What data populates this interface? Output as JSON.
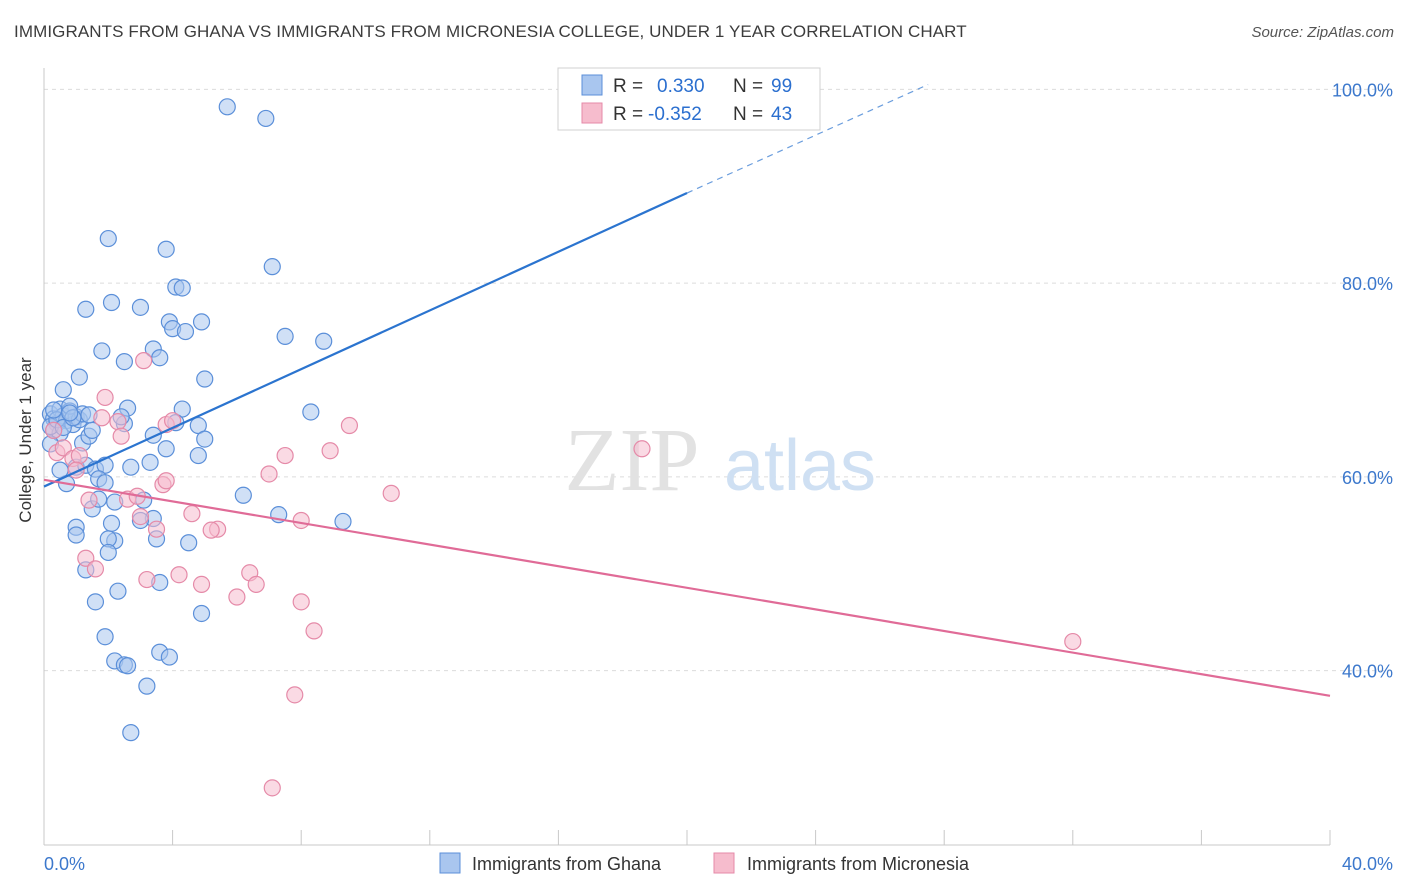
{
  "title": "IMMIGRANTS FROM GHANA VS IMMIGRANTS FROM MICRONESIA COLLEGE, UNDER 1 YEAR CORRELATION CHART",
  "source": "Source: ZipAtlas.com",
  "watermark": {
    "zip": "ZIP",
    "atlas": "atlas"
  },
  "legend_box": {
    "rows": [
      {
        "r_label": "R =",
        "r_value": "0.330",
        "n_label": "N =",
        "n_value": "99"
      },
      {
        "r_label": "R =",
        "r_value": "-0.352",
        "n_label": "N =",
        "n_value": "43"
      }
    ]
  },
  "chart_data": {
    "type": "scatter",
    "xlabel": "",
    "ylabel": "College, Under 1 year",
    "xlim": [
      0,
      40
    ],
    "ylim": [
      22,
      102
    ],
    "x_tick_labels": [
      "0.0%",
      "40.0%"
    ],
    "y_ticks": [
      40,
      60,
      80,
      100
    ],
    "y_tick_labels": [
      "40.0%",
      "60.0%",
      "80.0%",
      "100.0%"
    ],
    "grid": true,
    "legend": "bottom",
    "series": [
      {
        "name": "Immigrants from Ghana",
        "color": "#5b8fd9",
        "fill": "#a9c6ef",
        "line_color": "#2b74cf",
        "r": 0.33,
        "n": 99,
        "trend": {
          "x": [
            0,
            20
          ],
          "y": [
            59,
            89.3
          ],
          "dashed_to": [
            27.5,
            100.5
          ]
        },
        "points": [
          [
            0.2,
            66.5
          ],
          [
            0.3,
            66
          ],
          [
            0.4,
            65.5
          ],
          [
            0.5,
            67
          ],
          [
            0.6,
            66.3
          ],
          [
            0.7,
            65.8
          ],
          [
            0.8,
            66.8
          ],
          [
            0.9,
            65.4
          ],
          [
            1.0,
            66.2
          ],
          [
            1.1,
            65.9
          ],
          [
            0.3,
            64.8
          ],
          [
            0.5,
            64.5
          ],
          [
            0.2,
            65.2
          ],
          [
            0.8,
            67.3
          ],
          [
            1.2,
            66.5
          ],
          [
            0.6,
            69
          ],
          [
            1.1,
            70.3
          ],
          [
            1.2,
            63.5
          ],
          [
            1.4,
            64.2
          ],
          [
            1.5,
            64.8
          ],
          [
            1.0,
            61
          ],
          [
            1.3,
            61.2
          ],
          [
            1.6,
            60.8
          ],
          [
            1.9,
            61.2
          ],
          [
            0.7,
            59.3
          ],
          [
            1.7,
            59.8
          ],
          [
            1.9,
            59.4
          ],
          [
            1.5,
            56.7
          ],
          [
            1.7,
            57.7
          ],
          [
            2.2,
            57.4
          ],
          [
            1.0,
            54.8
          ],
          [
            1.0,
            54
          ],
          [
            2.1,
            55.2
          ],
          [
            2.2,
            53.4
          ],
          [
            2.0,
            53.6
          ],
          [
            2.0,
            52.2
          ],
          [
            1.3,
            50.4
          ],
          [
            2.3,
            48.2
          ],
          [
            1.6,
            47.1
          ],
          [
            1.9,
            43.5
          ],
          [
            2.2,
            41
          ],
          [
            2.5,
            40.6
          ],
          [
            2.6,
            40.5
          ],
          [
            3.2,
            38.4
          ],
          [
            2.7,
            33.6
          ],
          [
            2.0,
            84.6
          ],
          [
            3.8,
            83.5
          ],
          [
            1.3,
            77.3
          ],
          [
            2.1,
            78
          ],
          [
            3.0,
            77.5
          ],
          [
            4.1,
            79.6
          ],
          [
            4.3,
            79.5
          ],
          [
            3.9,
            76
          ],
          [
            4.0,
            75.3
          ],
          [
            4.4,
            75
          ],
          [
            4.9,
            76
          ],
          [
            1.8,
            73
          ],
          [
            2.5,
            71.9
          ],
          [
            3.4,
            73.2
          ],
          [
            3.6,
            72.3
          ],
          [
            5.0,
            70.1
          ],
          [
            2.6,
            67.1
          ],
          [
            4.3,
            67
          ],
          [
            2.5,
            65.5
          ],
          [
            3.4,
            64.3
          ],
          [
            3.8,
            62.9
          ],
          [
            4.1,
            65.6
          ],
          [
            4.8,
            65.3
          ],
          [
            4.8,
            62.2
          ],
          [
            5.0,
            63.9
          ],
          [
            3.3,
            61.5
          ],
          [
            2.7,
            61
          ],
          [
            3.1,
            57.6
          ],
          [
            3.4,
            55.7
          ],
          [
            3.0,
            55.5
          ],
          [
            3.5,
            53.6
          ],
          [
            4.5,
            53.2
          ],
          [
            3.6,
            49.1
          ],
          [
            4.9,
            45.9
          ],
          [
            3.6,
            41.9
          ],
          [
            3.9,
            41.4
          ],
          [
            5.7,
            98.2
          ],
          [
            6.9,
            97
          ],
          [
            7.1,
            81.7
          ],
          [
            7.5,
            74.5
          ],
          [
            8.7,
            74
          ],
          [
            8.3,
            66.7
          ],
          [
            6.2,
            58.1
          ],
          [
            7.3,
            56.1
          ],
          [
            9.3,
            55.4
          ],
          [
            0.4,
            65.9
          ],
          [
            0.6,
            65.1
          ],
          [
            0.9,
            66.1
          ],
          [
            0.2,
            63.4
          ],
          [
            0.5,
            60.7
          ],
          [
            0.8,
            66.6
          ],
          [
            1.4,
            66.4
          ],
          [
            2.4,
            66.2
          ],
          [
            0.3,
            66.9
          ]
        ]
      },
      {
        "name": "Immigrants from Micronesia",
        "color": "#e58aa8",
        "fill": "#f6bccd",
        "line_color": "#e06b97",
        "r": -0.352,
        "n": 43,
        "trend": {
          "x": [
            0,
            40
          ],
          "y": [
            59.7,
            37.4
          ]
        },
        "points": [
          [
            0.3,
            64.8
          ],
          [
            0.4,
            62.5
          ],
          [
            0.6,
            63
          ],
          [
            0.9,
            61.9
          ],
          [
            1.1,
            62.2
          ],
          [
            1.0,
            60.7
          ],
          [
            1.4,
            57.6
          ],
          [
            1.3,
            51.6
          ],
          [
            1.6,
            50.5
          ],
          [
            1.8,
            66.1
          ],
          [
            1.9,
            68.2
          ],
          [
            2.3,
            65.7
          ],
          [
            2.4,
            64.2
          ],
          [
            2.6,
            57.7
          ],
          [
            2.9,
            58
          ],
          [
            3.0,
            55.9
          ],
          [
            3.5,
            54.6
          ],
          [
            3.2,
            49.4
          ],
          [
            3.7,
            59.2
          ],
          [
            3.8,
            59.6
          ],
          [
            3.8,
            65.4
          ],
          [
            4.0,
            65.8
          ],
          [
            3.1,
            72
          ],
          [
            4.2,
            49.9
          ],
          [
            4.6,
            56.2
          ],
          [
            4.9,
            48.9
          ],
          [
            5.4,
            54.6
          ],
          [
            5.2,
            54.5
          ],
          [
            6.0,
            47.6
          ],
          [
            6.4,
            50.1
          ],
          [
            6.6,
            48.9
          ],
          [
            7.0,
            60.3
          ],
          [
            7.5,
            62.2
          ],
          [
            8.0,
            47.1
          ],
          [
            8.0,
            55.5
          ],
          [
            8.4,
            44.1
          ],
          [
            8.9,
            62.7
          ],
          [
            9.5,
            65.3
          ],
          [
            10.8,
            58.3
          ],
          [
            7.8,
            37.5
          ],
          [
            7.1,
            27.9
          ],
          [
            18.6,
            62.9
          ],
          [
            32.0,
            43
          ]
        ]
      }
    ]
  }
}
